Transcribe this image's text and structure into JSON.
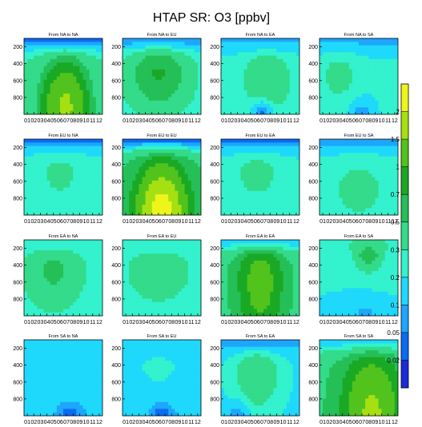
{
  "chart_data": {
    "type": "heatmap",
    "title": "HTAP SR: O3 [ppbv]",
    "x_tick_labels": [
      "01",
      "02",
      "03",
      "04",
      "05",
      "06",
      "07",
      "08",
      "09",
      "10",
      "11",
      "12"
    ],
    "y_tick_labels": [
      "200",
      "400",
      "600",
      "800"
    ],
    "y_values": [
      200,
      400,
      600,
      800
    ],
    "y_range": [
      100,
      1000
    ],
    "y_axis": "pressure (inverted)",
    "colorbar": {
      "levels": [
        0.02,
        0.05,
        0.1,
        0.2,
        0.3,
        0.5,
        0.7,
        1,
        1.5,
        2
      ],
      "tick_labels": [
        "0.02",
        "0.05",
        "0.1",
        "0.2",
        "0.3",
        "0.5",
        "0.7",
        "1",
        "1.5",
        "2"
      ],
      "colors": [
        "#1a2bd9",
        "#0a6cf5",
        "#1ea5fc",
        "#1ed9fb",
        "#33f2cd",
        "#33db8a",
        "#25bf58",
        "#1aa924",
        "#52c31d",
        "#a6e012",
        "#eef51b"
      ]
    },
    "panel_titles": [
      [
        "From NA to NA",
        "From NA to EU",
        "From NA to EA",
        "From NA to SA"
      ],
      [
        "From EU to NA",
        "From EU to EU",
        "From EU to EA",
        "From EU to SA"
      ],
      [
        "From EA to NA",
        "From EA to EU",
        "From EA to EA",
        "From EA to SA"
      ],
      [
        "From SA to NA",
        "From SA to EU",
        "From SA to EA",
        "From SA to SA"
      ]
    ],
    "panel_fields": [
      {
        "type": "bulge",
        "base": 0.18,
        "peak": 1.6,
        "cx": 6.8,
        "cy": 900,
        "sx": 2.6,
        "sy": 380,
        "top": 0.04
      },
      {
        "type": "blob",
        "base": 0.22,
        "peak": 0.72,
        "cx": 6.0,
        "cy": 520,
        "sx": 3.2,
        "sy": 300,
        "top": 0.06
      },
      {
        "type": "blob",
        "base": 0.22,
        "peak": 0.45,
        "cx": 7.5,
        "cy": 600,
        "sx": 2.4,
        "sy": 260,
        "top": 0.08,
        "low": 0.03,
        "lowx": 6.8
      },
      {
        "type": "blob",
        "base": 0.21,
        "peak": 0.36,
        "cx": 3.5,
        "cy": 550,
        "sx": 2.0,
        "sy": 200,
        "top": 0.08,
        "low": 0.05,
        "lowx": 7.0
      },
      {
        "type": "blob",
        "base": 0.22,
        "peak": 0.32,
        "cx": 6.0,
        "cy": 500,
        "sx": 3.0,
        "sy": 300,
        "top": 0.04
      },
      {
        "type": "bulge",
        "base": 0.28,
        "peak": 2.3,
        "cx": 6.5,
        "cy": 980,
        "sx": 2.8,
        "sy": 420,
        "top": 0.03
      },
      {
        "type": "blob",
        "base": 0.21,
        "peak": 0.34,
        "cx": 6.0,
        "cy": 500,
        "sx": 3.0,
        "sy": 260,
        "top": 0.04
      },
      {
        "type": "blob",
        "base": 0.21,
        "peak": 0.34,
        "cx": 6.5,
        "cy": 700,
        "sx": 3.5,
        "sy": 300,
        "top": 0.06
      },
      {
        "type": "blob",
        "base": 0.22,
        "peak": 0.55,
        "cx": 5.0,
        "cy": 450,
        "sx": 3.0,
        "sy": 300,
        "top": 0.2
      },
      {
        "type": "blob",
        "base": 0.22,
        "peak": 0.42,
        "cx": 6.0,
        "cy": 450,
        "sx": 3.5,
        "sy": 280,
        "top": 0.2
      },
      {
        "type": "bulge",
        "base": 0.3,
        "peak": 1.2,
        "cx": 6.5,
        "cy": 600,
        "sx": 2.6,
        "sy": 520,
        "top": 0.15
      },
      {
        "type": "blob",
        "base": 0.2,
        "peak": 0.9,
        "cx": 8.0,
        "cy": 180,
        "sx": 1.4,
        "sy": 160,
        "top": 0.3,
        "low": 0.06,
        "lowx": 7.5
      },
      {
        "type": "blob",
        "base": 0.1,
        "peak": 0.2,
        "cx": 6.0,
        "cy": 400,
        "sx": 4.0,
        "sy": 300,
        "top": 0.12,
        "low": 0.02,
        "lowx": 7.5
      },
      {
        "type": "blob",
        "base": 0.1,
        "peak": 0.22,
        "cx": 6.0,
        "cy": 400,
        "sx": 4.0,
        "sy": 300,
        "top": 0.12,
        "low": 0.02,
        "lowx": 6.5
      },
      {
        "type": "blob",
        "base": 0.18,
        "peak": 0.45,
        "cx": 6.0,
        "cy": 500,
        "sx": 2.4,
        "sy": 300,
        "top": 0.06,
        "low": 0.05,
        "lowx": 3.0
      },
      {
        "type": "bulge",
        "base": 0.3,
        "peak": 1.6,
        "cx": 8.5,
        "cy": 950,
        "sx": 3.2,
        "sy": 500,
        "top": 0.15
      }
    ]
  }
}
